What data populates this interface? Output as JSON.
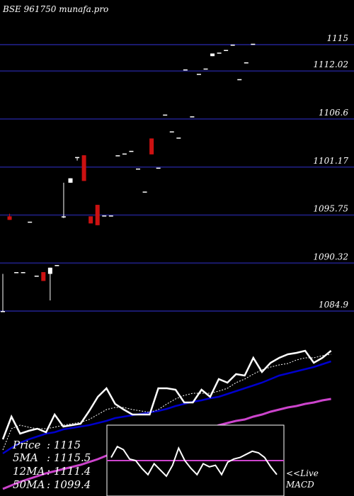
{
  "header": {
    "title": "BSE 961750  munafa.pro"
  },
  "colors": {
    "background": "#000000",
    "grid_line": "#1a1a6e",
    "candle_up": "#ffffff",
    "candle_down": "#cc1111",
    "price_line": "#ffffff",
    "ma5_line": "#ffffff",
    "ma12_line": "#0000cc",
    "ma50_line": "#cc44cc",
    "text": "#ffffff"
  },
  "chart_data": [
    {
      "type": "candlestick",
      "title": "BSE 961750  munafa.pro",
      "y_ticks": [
        1115,
        1112.02,
        1106.6,
        1101.17,
        1095.75,
        1090.32,
        1084.9
      ],
      "ylim": [
        1084.9,
        1115
      ],
      "grid": true,
      "candles": [
        {
          "o": 1084.9,
          "h": 1089.1,
          "l": 1084.9,
          "c": 1084.9
        },
        {
          "o": 1095.6,
          "h": 1095.9,
          "l": 1095.2,
          "c": 1095.2
        },
        {
          "o": 1089.3,
          "h": 1089.3,
          "l": 1089.3,
          "c": 1089.3
        },
        {
          "o": 1089.3,
          "h": 1089.3,
          "l": 1089.3,
          "c": 1089.3
        },
        {
          "o": 1095.0,
          "h": 1095.0,
          "l": 1095.0,
          "c": 1095.0
        },
        {
          "o": 1088.9,
          "h": 1088.9,
          "l": 1088.9,
          "c": 1088.9
        },
        {
          "o": 1089.3,
          "h": 1089.3,
          "l": 1088.3,
          "c": 1088.3
        },
        {
          "o": 1089.1,
          "h": 1089.8,
          "l": 1086.1,
          "c": 1089.8
        },
        {
          "o": 1090.1,
          "h": 1090.1,
          "l": 1090.1,
          "c": 1090.1
        },
        {
          "o": 1095.6,
          "h": 1099.4,
          "l": 1095.4,
          "c": 1095.6
        },
        {
          "o": 1099.4,
          "h": 1099.9,
          "l": 1099.4,
          "c": 1099.9
        },
        {
          "o": 1102.3,
          "h": 1102.3,
          "l": 1101.9,
          "c": 1102.3
        },
        {
          "o": 1102.5,
          "h": 1102.5,
          "l": 1099.6,
          "c": 1099.6
        },
        {
          "o": 1095.6,
          "h": 1095.6,
          "l": 1094.8,
          "c": 1094.8
        },
        {
          "o": 1096.9,
          "h": 1096.9,
          "l": 1094.6,
          "c": 1094.6
        },
        {
          "o": 1095.7,
          "h": 1095.7,
          "l": 1095.7,
          "c": 1095.7
        },
        {
          "o": 1095.7,
          "h": 1095.7,
          "l": 1095.7,
          "c": 1095.7
        },
        {
          "o": 1102.5,
          "h": 1102.5,
          "l": 1102.5,
          "c": 1102.5
        },
        {
          "o": 1102.7,
          "h": 1102.7,
          "l": 1102.7,
          "c": 1102.7
        },
        {
          "o": 1103.0,
          "h": 1103.0,
          "l": 1103.0,
          "c": 1103.0
        },
        {
          "o": 1101.0,
          "h": 1101.0,
          "l": 1101.0,
          "c": 1101.0
        },
        {
          "o": 1098.4,
          "h": 1098.4,
          "l": 1098.4,
          "c": 1098.4
        },
        {
          "o": 1104.4,
          "h": 1104.4,
          "l": 1102.6,
          "c": 1102.6
        },
        {
          "o": 1101.1,
          "h": 1101.1,
          "l": 1101.1,
          "c": 1101.1
        },
        {
          "o": 1107.1,
          "h": 1107.1,
          "l": 1107.1,
          "c": 1107.1
        },
        {
          "o": 1105.2,
          "h": 1105.2,
          "l": 1105.2,
          "c": 1105.2
        },
        {
          "o": 1104.5,
          "h": 1104.5,
          "l": 1104.5,
          "c": 1104.5
        },
        {
          "o": 1112.2,
          "h": 1112.2,
          "l": 1112.2,
          "c": 1112.2
        },
        {
          "o": 1106.9,
          "h": 1106.9,
          "l": 1106.9,
          "c": 1106.9
        },
        {
          "o": 1111.7,
          "h": 1111.7,
          "l": 1111.7,
          "c": 1111.7
        },
        {
          "o": 1112.3,
          "h": 1112.3,
          "l": 1112.3,
          "c": 1112.3
        },
        {
          "o": 1113.7,
          "h": 1114.0,
          "l": 1113.7,
          "c": 1114.0
        },
        {
          "o": 1114.1,
          "h": 1114.1,
          "l": 1114.1,
          "c": 1114.1
        },
        {
          "o": 1114.4,
          "h": 1114.4,
          "l": 1114.4,
          "c": 1114.4
        },
        {
          "o": 1115.0,
          "h": 1115.0,
          "l": 1115.0,
          "c": 1115.0
        },
        {
          "o": 1111.1,
          "h": 1111.1,
          "l": 1111.1,
          "c": 1111.1
        },
        {
          "o": 1113.0,
          "h": 1113.0,
          "l": 1113.0,
          "c": 1113.0
        },
        {
          "o": 1115.1,
          "h": 1115.1,
          "l": 1115.1,
          "c": 1115.1
        }
      ]
    },
    {
      "type": "line",
      "series": [
        {
          "name": "Price",
          "values": [
            620,
            588,
            612,
            608,
            605,
            610,
            585,
            602,
            600,
            598,
            580,
            560,
            548,
            570,
            578,
            585,
            585,
            585,
            548,
            548,
            550,
            568,
            568,
            550,
            560,
            535,
            540,
            528,
            530,
            505,
            525,
            512,
            505,
            500,
            498,
            495,
            512,
            505,
            495
          ]
        },
        {
          "name": "5MA",
          "values": [
            635,
            605,
            600,
            603,
            605,
            605,
            603,
            600,
            598,
            596,
            592,
            585,
            578,
            575,
            575,
            578,
            580,
            582,
            578,
            570,
            563,
            558,
            555,
            555,
            555,
            552,
            548,
            540,
            535,
            528,
            522,
            518,
            515,
            513,
            508,
            505,
            505,
            502,
            500
          ]
        },
        {
          "name": "12MA",
          "values": [
            640,
            632,
            625,
            620,
            616,
            612,
            610,
            606,
            604,
            602,
            600,
            597,
            594,
            590,
            588,
            586,
            584,
            582,
            580,
            577,
            573,
            570,
            567,
            565,
            562,
            560,
            556,
            552,
            548,
            544,
            540,
            535,
            530,
            527,
            524,
            521,
            518,
            514,
            510
          ]
        },
        {
          "name": "50MA",
          "values": [
            690,
            685,
            680,
            676,
            672,
            668,
            665,
            662,
            659,
            656,
            652,
            648,
            643,
            640,
            636,
            632,
            630,
            626,
            623,
            620,
            617,
            614,
            611,
            608,
            605,
            600,
            597,
            594,
            592,
            588,
            585,
            581,
            578,
            575,
            573,
            570,
            568,
            565,
            563
          ]
        }
      ]
    },
    {
      "type": "line",
      "series": [
        {
          "name": "MACD",
          "values": [
            0.2,
            0.9,
            0.7,
            0.1,
            0.0,
            -0.5,
            -0.9,
            -0.2,
            -0.6,
            -1.0,
            -0.3,
            0.8,
            0.0,
            -0.5,
            -0.9,
            -0.2,
            -0.4,
            -0.3,
            -0.9,
            -0.1,
            0.1,
            0.2,
            0.4,
            0.6,
            0.5,
            0.2,
            -0.4,
            -0.9
          ]
        }
      ]
    }
  ],
  "legend": {
    "price_label": "Price",
    "price_value": ": 1115",
    "ma5_label": "5MA",
    "ma5_value": ": 1115.5",
    "ma12_label": "12MA",
    "ma12_value": ": 1111.4",
    "ma50_label": "50MA",
    "ma50_value": ": 1099.4"
  },
  "macd_panel": {
    "live_label": "<<Live",
    "macd_label": "MACD"
  }
}
